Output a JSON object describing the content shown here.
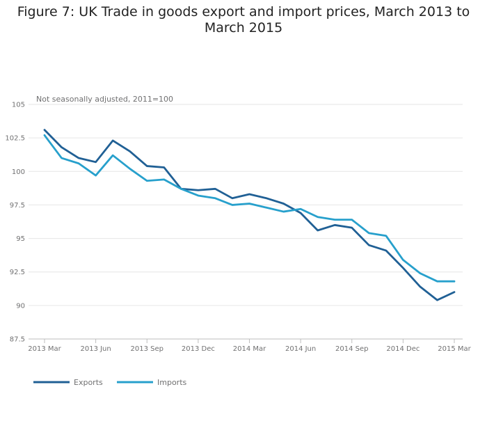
{
  "chart_data": {
    "type": "line",
    "title": "Figure 7: UK Trade in goods export and import prices, March 2013 to March 2015",
    "subtitle": "Not seasonally adjusted, 2011=100",
    "xlabel": "",
    "ylabel": "",
    "ylim": [
      87.5,
      105
    ],
    "yticks": [
      "87.5",
      "90",
      "92.5",
      "95",
      "97.5",
      "100",
      "102.5",
      "105"
    ],
    "x": [
      "2013 Mar",
      "2013 Apr",
      "2013 May",
      "2013 Jun",
      "2013 Jul",
      "2013 Aug",
      "2013 Sep",
      "2013 Oct",
      "2013 Nov",
      "2013 Dec",
      "2014 Jan",
      "2014 Feb",
      "2014 Mar",
      "2014 Apr",
      "2014 May",
      "2014 Jun",
      "2014 Jul",
      "2014 Aug",
      "2014 Sep",
      "2014 Oct",
      "2014 Nov",
      "2014 Dec",
      "2015 Jan",
      "2015 Feb",
      "2015 Mar"
    ],
    "xtick_labels": [
      "2013 Mar",
      "2013 Jun",
      "2013 Sep",
      "2013 Dec",
      "2014 Mar",
      "2014 Jun",
      "2014 Sep",
      "2014 Dec",
      "2015 Mar"
    ],
    "grid": true,
    "legend_position": "bottom-left",
    "series": [
      {
        "name": "Exports",
        "color": "#206095",
        "values": [
          103.1,
          101.8,
          101.0,
          100.7,
          102.3,
          101.5,
          100.4,
          100.3,
          98.7,
          98.6,
          98.7,
          98.0,
          98.3,
          98.0,
          97.6,
          96.9,
          95.6,
          96.0,
          95.8,
          94.5,
          94.1,
          92.8,
          91.4,
          90.4,
          91.0
        ]
      },
      {
        "name": "Imports",
        "color": "#27a0cc",
        "values": [
          102.7,
          101.0,
          100.6,
          99.7,
          101.2,
          100.2,
          99.3,
          99.4,
          98.7,
          98.2,
          98.0,
          97.5,
          97.6,
          97.3,
          97.0,
          97.2,
          96.6,
          96.4,
          96.4,
          95.4,
          95.2,
          93.4,
          92.4,
          91.8,
          91.8
        ]
      }
    ]
  }
}
